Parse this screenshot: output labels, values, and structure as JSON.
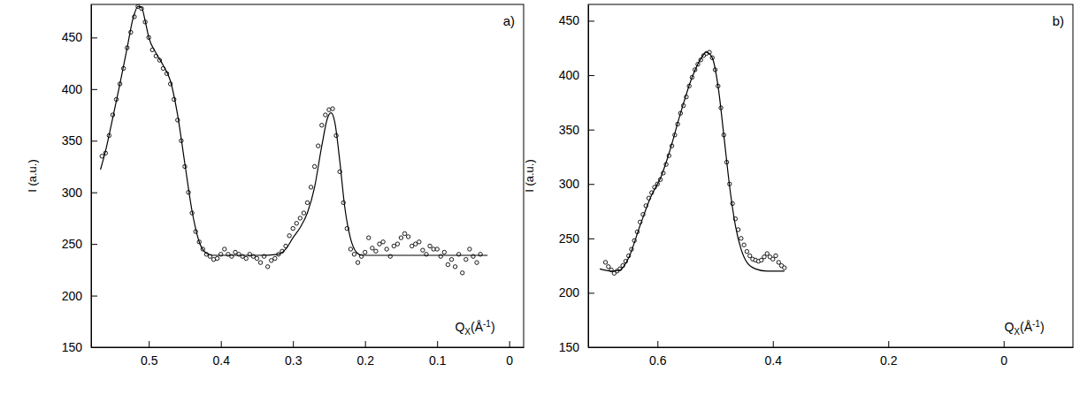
{
  "chart_data": [
    {
      "type": "scatter",
      "label": "a)",
      "y_label": "I (a.u.)",
      "x_label": [
        "Q",
        "X",
        "(Å",
        "-1",
        ")"
      ],
      "xlim": [
        0.58,
        -0.02
      ],
      "ylim": [
        150,
        482
      ],
      "xticks": [
        0.5,
        0.4,
        0.3,
        0.2,
        0.1,
        0
      ],
      "yticks": [
        150,
        200,
        250,
        300,
        350,
        400,
        450
      ],
      "grid": false,
      "series": [
        {
          "type": "scatter",
          "color": "#000000",
          "marker": "open-circle",
          "x": [
            0.565,
            0.56,
            0.555,
            0.55,
            0.545,
            0.54,
            0.535,
            0.53,
            0.525,
            0.52,
            0.515,
            0.51,
            0.505,
            0.5,
            0.495,
            0.49,
            0.485,
            0.48,
            0.475,
            0.47,
            0.465,
            0.46,
            0.455,
            0.45,
            0.445,
            0.44,
            0.435,
            0.43,
            0.425,
            0.42,
            0.415,
            0.41,
            0.405,
            0.4,
            0.395,
            0.39,
            0.385,
            0.38,
            0.375,
            0.37,
            0.365,
            0.36,
            0.355,
            0.35,
            0.345,
            0.34,
            0.335,
            0.33,
            0.325,
            0.32,
            0.315,
            0.31,
            0.305,
            0.3,
            0.295,
            0.29,
            0.285,
            0.28,
            0.275,
            0.27,
            0.265,
            0.26,
            0.255,
            0.25,
            0.245,
            0.24,
            0.235,
            0.23,
            0.225,
            0.22,
            0.215,
            0.21,
            0.205,
            0.2,
            0.195,
            0.19,
            0.185,
            0.18,
            0.175,
            0.17,
            0.165,
            0.16,
            0.155,
            0.15,
            0.145,
            0.14,
            0.135,
            0.13,
            0.125,
            0.12,
            0.115,
            0.11,
            0.105,
            0.1,
            0.095,
            0.09,
            0.085,
            0.08,
            0.075,
            0.07,
            0.065,
            0.06,
            0.055,
            0.05,
            0.045,
            0.04
          ],
          "values": [
            335,
            338,
            355,
            375,
            390,
            405,
            420,
            440,
            455,
            470,
            480,
            478,
            465,
            450,
            438,
            432,
            428,
            420,
            415,
            405,
            390,
            370,
            350,
            325,
            300,
            280,
            262,
            252,
            245,
            240,
            238,
            235,
            236,
            240,
            245,
            240,
            238,
            242,
            240,
            238,
            236,
            240,
            238,
            236,
            232,
            238,
            228,
            234,
            236,
            240,
            243,
            248,
            258,
            265,
            270,
            275,
            280,
            290,
            305,
            325,
            345,
            365,
            375,
            380,
            381,
            355,
            320,
            290,
            265,
            245,
            240,
            232,
            238,
            242,
            256,
            246,
            243,
            250,
            252,
            245,
            238,
            248,
            250,
            256,
            260,
            257,
            248,
            250,
            252,
            244,
            240,
            248,
            245,
            245,
            238,
            242,
            230,
            235,
            228,
            240,
            222,
            235,
            245,
            238,
            232,
            240
          ]
        },
        {
          "type": "line",
          "color": "#000000",
          "line_style": "solid",
          "x": [
            0.567,
            0.56,
            0.55,
            0.54,
            0.53,
            0.522,
            0.515,
            0.51,
            0.505,
            0.5,
            0.49,
            0.48,
            0.47,
            0.46,
            0.45,
            0.44,
            0.43,
            0.42,
            0.41,
            0.35,
            0.32,
            0.31,
            0.3,
            0.29,
            0.28,
            0.27,
            0.26,
            0.252,
            0.247,
            0.242,
            0.235,
            0.228,
            0.22,
            0.212,
            0.205,
            0.03
          ],
          "values": [
            322,
            340,
            372,
            405,
            440,
            468,
            480,
            479,
            466,
            450,
            435,
            423,
            408,
            375,
            328,
            282,
            252,
            241,
            239,
            239,
            240,
            245,
            256,
            266,
            280,
            305,
            345,
            372,
            377,
            368,
            330,
            285,
            255,
            242,
            239,
            239
          ]
        }
      ]
    },
    {
      "type": "scatter",
      "label": "b)",
      "y_label": "I (a.u.)",
      "x_label": [
        "Q",
        "X",
        "(Å",
        "-1",
        ")"
      ],
      "xlim": [
        0.72,
        -0.12
      ],
      "ylim": [
        150,
        465
      ],
      "xticks": [
        0.6,
        0.4,
        0.2,
        0
      ],
      "yticks": [
        150,
        200,
        250,
        300,
        350,
        400,
        450
      ],
      "grid": false,
      "series": [
        {
          "type": "scatter",
          "color": "#000000",
          "marker": "open-circle",
          "x": [
            0.69,
            0.685,
            0.68,
            0.675,
            0.67,
            0.665,
            0.66,
            0.655,
            0.65,
            0.645,
            0.64,
            0.635,
            0.63,
            0.625,
            0.62,
            0.615,
            0.61,
            0.605,
            0.6,
            0.595,
            0.59,
            0.585,
            0.58,
            0.575,
            0.57,
            0.565,
            0.56,
            0.555,
            0.55,
            0.545,
            0.54,
            0.535,
            0.53,
            0.525,
            0.52,
            0.515,
            0.51,
            0.505,
            0.5,
            0.495,
            0.49,
            0.485,
            0.48,
            0.475,
            0.47,
            0.465,
            0.46,
            0.455,
            0.45,
            0.445,
            0.44,
            0.435,
            0.43,
            0.425,
            0.42,
            0.415,
            0.41,
            0.405,
            0.4,
            0.395,
            0.39,
            0.385,
            0.38
          ],
          "values": [
            228,
            224,
            221,
            218,
            220,
            222,
            225,
            229,
            234,
            240,
            248,
            256,
            265,
            272,
            280,
            287,
            292,
            297,
            300,
            304,
            310,
            318,
            326,
            335,
            345,
            355,
            365,
            372,
            380,
            390,
            398,
            405,
            410,
            414,
            418,
            420,
            421,
            416,
            405,
            390,
            370,
            345,
            320,
            300,
            282,
            268,
            258,
            250,
            244,
            238,
            234,
            231,
            230,
            229,
            230,
            233,
            236,
            233,
            231,
            234,
            228,
            225,
            223
          ]
        },
        {
          "type": "line",
          "color": "#000000",
          "line_style": "solid",
          "x": [
            0.7,
            0.68,
            0.665,
            0.65,
            0.63,
            0.61,
            0.595,
            0.58,
            0.56,
            0.54,
            0.525,
            0.515,
            0.505,
            0.495,
            0.485,
            0.475,
            0.465,
            0.455,
            0.445,
            0.43,
            0.41,
            0.38
          ],
          "values": [
            222,
            220,
            221,
            232,
            262,
            290,
            305,
            328,
            365,
            398,
            415,
            421,
            416,
            390,
            345,
            298,
            262,
            240,
            228,
            222,
            220,
            220
          ]
        }
      ]
    }
  ]
}
